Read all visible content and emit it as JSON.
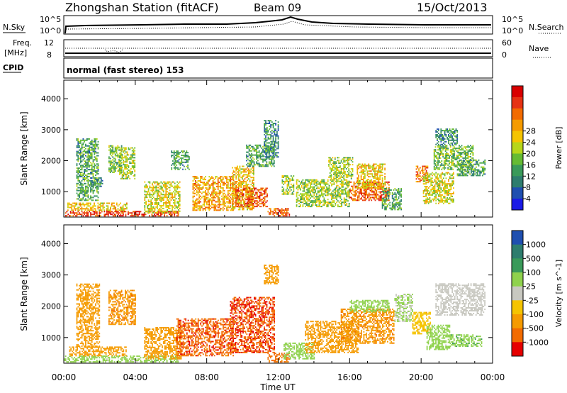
{
  "header": {
    "station": "Zhongshan Station (fitACF)",
    "beam": "Beam 09",
    "date": "15/Oct/2013"
  },
  "strip_labels": {
    "nsky": "N.Sky",
    "nsky_ticks": [
      "10^5",
      "10^0"
    ],
    "nsearch": "N.Search",
    "nsearch_ticks": [
      "10^5",
      "10^0"
    ],
    "freq": "Freq.",
    "freq_unit": "[MHz]",
    "freq_ticks": [
      "12",
      "8"
    ],
    "nave": "Nave",
    "nave_ticks": [
      "60",
      "0"
    ],
    "cpid": "CPID",
    "cpid_value": "normal (fast stereo) 153"
  },
  "chart_data": [
    {
      "type": "heatmap",
      "panel": "power",
      "ylabel": "Slant Range [km]",
      "y_ticks": [
        1000,
        2000,
        3000,
        4000
      ],
      "ylim": [
        180,
        4600
      ],
      "xlim_hours": [
        0,
        24
      ],
      "colorbar": {
        "label": "Power [dB]",
        "ticks": [
          "4",
          "8",
          "12",
          "16",
          "20",
          "24",
          "28"
        ],
        "range": [
          0,
          30
        ],
        "colors": [
          "#1a1ae6",
          "#1f4fb0",
          "#2e7d6e",
          "#3a9a5a",
          "#66bb33",
          "#b7d61a",
          "#f5c400",
          "#f59b00",
          "#f26b00",
          "#e63214",
          "#d90000"
        ]
      },
      "regions": [
        {
          "t0": 0.0,
          "t1": 6.4,
          "r0": 200,
          "r1": 380,
          "value": 26
        },
        {
          "t0": 0.2,
          "t1": 3.5,
          "r0": 380,
          "r1": 620,
          "value": 18
        },
        {
          "t0": 0.7,
          "t1": 1.9,
          "r0": 700,
          "r1": 2700,
          "value": 10
        },
        {
          "t0": 1.5,
          "t1": 2.2,
          "r0": 1150,
          "r1": 1450,
          "value": 8
        },
        {
          "t0": 2.5,
          "t1": 3.2,
          "r0": 1600,
          "r1": 2500,
          "value": 12
        },
        {
          "t0": 3.1,
          "t1": 4.0,
          "r0": 1400,
          "r1": 2400,
          "value": 14
        },
        {
          "t0": 4.5,
          "t1": 6.5,
          "r0": 300,
          "r1": 1300,
          "value": 16
        },
        {
          "t0": 6.0,
          "t1": 7.0,
          "r0": 1700,
          "r1": 2300,
          "value": 10
        },
        {
          "t0": 7.2,
          "t1": 9.5,
          "r0": 380,
          "r1": 1500,
          "value": 20
        },
        {
          "t0": 9.4,
          "t1": 10.6,
          "r0": 400,
          "r1": 1800,
          "value": 18
        },
        {
          "t0": 9.6,
          "t1": 11.4,
          "r0": 500,
          "r1": 1100,
          "value": 24
        },
        {
          "t0": 10.2,
          "t1": 11.8,
          "r0": 1800,
          "r1": 2500,
          "value": 10
        },
        {
          "t0": 11.2,
          "t1": 12.0,
          "r0": 2100,
          "r1": 3300,
          "value": 8
        },
        {
          "t0": 11.4,
          "t1": 12.6,
          "r0": 200,
          "r1": 450,
          "value": 24
        },
        {
          "t0": 12.2,
          "t1": 12.9,
          "r0": 900,
          "r1": 1500,
          "value": 14
        },
        {
          "t0": 13.0,
          "t1": 16.0,
          "r0": 500,
          "r1": 1400,
          "value": 14
        },
        {
          "t0": 14.8,
          "t1": 16.2,
          "r0": 1400,
          "r1": 2100,
          "value": 14
        },
        {
          "t0": 16.0,
          "t1": 18.2,
          "r0": 700,
          "r1": 1300,
          "value": 24
        },
        {
          "t0": 16.4,
          "t1": 18.0,
          "r0": 1100,
          "r1": 1900,
          "value": 18
        },
        {
          "t0": 17.8,
          "t1": 18.9,
          "r0": 400,
          "r1": 1100,
          "value": 10
        },
        {
          "t0": 19.7,
          "t1": 20.4,
          "r0": 1300,
          "r1": 1800,
          "value": 22
        },
        {
          "t0": 20.1,
          "t1": 21.8,
          "r0": 600,
          "r1": 1600,
          "value": 16
        },
        {
          "t0": 20.7,
          "t1": 22.9,
          "r0": 1700,
          "r1": 2500,
          "value": 12
        },
        {
          "t0": 20.8,
          "t1": 22.0,
          "r0": 2500,
          "r1": 3000,
          "value": 8
        },
        {
          "t0": 22.0,
          "t1": 23.6,
          "r0": 1500,
          "r1": 2000,
          "value": 10
        }
      ]
    },
    {
      "type": "heatmap",
      "panel": "velocity",
      "ylabel": "Slant Range [km]",
      "y_ticks": [
        1000,
        2000,
        3000,
        4000
      ],
      "ylim": [
        180,
        4600
      ],
      "xlim_hours": [
        0,
        24
      ],
      "x_ticks": [
        "00:00",
        "04:00",
        "08:00",
        "12:00",
        "16:00",
        "20:00",
        "00:00"
      ],
      "xlabel": "Time UT",
      "colorbar": {
        "label": "Velocity [m s^-1]",
        "ticks": [
          "1000",
          "500",
          "100",
          "25",
          "-25",
          "-100",
          "-500",
          "-1000"
        ],
        "bins": [
          1000,
          500,
          100,
          25,
          -25,
          -100,
          -500,
          -1000
        ],
        "colors": [
          "#1f4fb0",
          "#2e7d6e",
          "#3a9a5a",
          "#8fd24d",
          "#c8c8c0",
          "#f5c400",
          "#f59b00",
          "#f26b00",
          "#e60000"
        ]
      },
      "regions": [
        {
          "t0": 0.0,
          "t1": 6.4,
          "r0": 200,
          "r1": 400,
          "value": 60
        },
        {
          "t0": 0.3,
          "t1": 3.5,
          "r0": 400,
          "r1": 700,
          "value": -300
        },
        {
          "t0": 0.7,
          "t1": 2.0,
          "r0": 700,
          "r1": 2700,
          "value": -200
        },
        {
          "t0": 2.5,
          "t1": 4.0,
          "r0": 1400,
          "r1": 2500,
          "value": -400
        },
        {
          "t0": 4.5,
          "t1": 6.6,
          "r0": 300,
          "r1": 1300,
          "value": -200
        },
        {
          "t0": 6.3,
          "t1": 9.5,
          "r0": 400,
          "r1": 1600,
          "value": -800
        },
        {
          "t0": 9.3,
          "t1": 11.8,
          "r0": 500,
          "r1": 2300,
          "value": -900
        },
        {
          "t0": 11.2,
          "t1": 12.0,
          "r0": 2700,
          "r1": 3300,
          "value": -300
        },
        {
          "t0": 11.4,
          "t1": 12.6,
          "r0": 200,
          "r1": 500,
          "value": -700
        },
        {
          "t0": 12.3,
          "t1": 14.0,
          "r0": 300,
          "r1": 800,
          "value": 50
        },
        {
          "t0": 13.5,
          "t1": 16.5,
          "r0": 500,
          "r1": 1500,
          "value": -200
        },
        {
          "t0": 15.5,
          "t1": 18.5,
          "r0": 800,
          "r1": 1900,
          "value": -400
        },
        {
          "t0": 16.0,
          "t1": 18.2,
          "r0": 1800,
          "r1": 2200,
          "value": 60
        },
        {
          "t0": 18.5,
          "t1": 19.5,
          "r0": 1500,
          "r1": 2400,
          "value": 30
        },
        {
          "t0": 19.5,
          "t1": 20.5,
          "r0": 1100,
          "r1": 1800,
          "value": -70
        },
        {
          "t0": 20.3,
          "t1": 21.6,
          "r0": 600,
          "r1": 1400,
          "value": 60
        },
        {
          "t0": 20.8,
          "t1": 23.6,
          "r0": 1700,
          "r1": 2700,
          "value": 0
        },
        {
          "t0": 21.6,
          "t1": 23.4,
          "r0": 700,
          "r1": 1100,
          "value": 80
        }
      ]
    }
  ]
}
